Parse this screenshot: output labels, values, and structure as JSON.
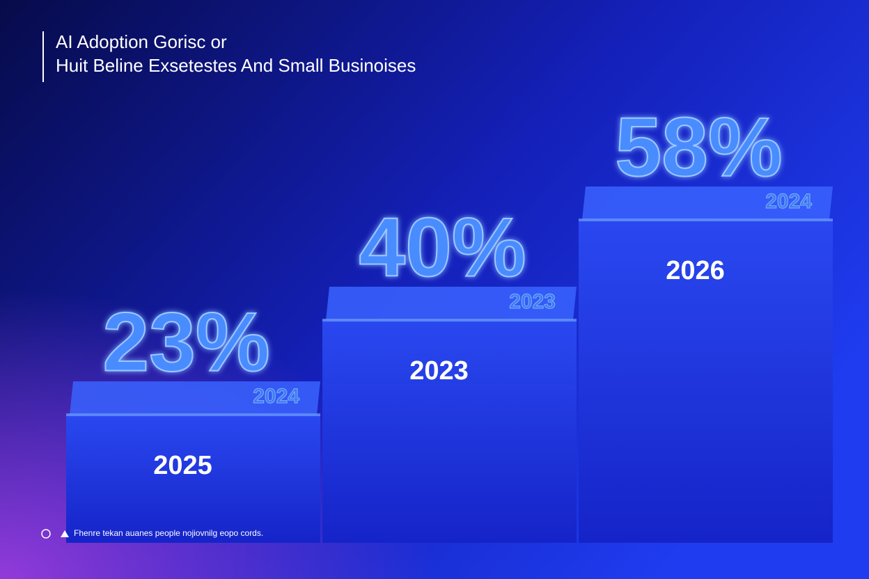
{
  "chart_data": {
    "type": "bar",
    "title": "AI Adoption Gorisc or",
    "subtitle": "Huit Beline Exsetestes And Small Businoises",
    "categories": [
      "2025",
      "2023",
      "2026"
    ],
    "values": [
      23,
      40,
      58
    ],
    "value_labels": [
      "23%",
      "40%",
      "58%"
    ],
    "badges": [
      "2024",
      "2023",
      "2024"
    ],
    "color": "#1f3be0",
    "note": "Fhenre tekan auanes people nojiovnilg eopo cords."
  }
}
